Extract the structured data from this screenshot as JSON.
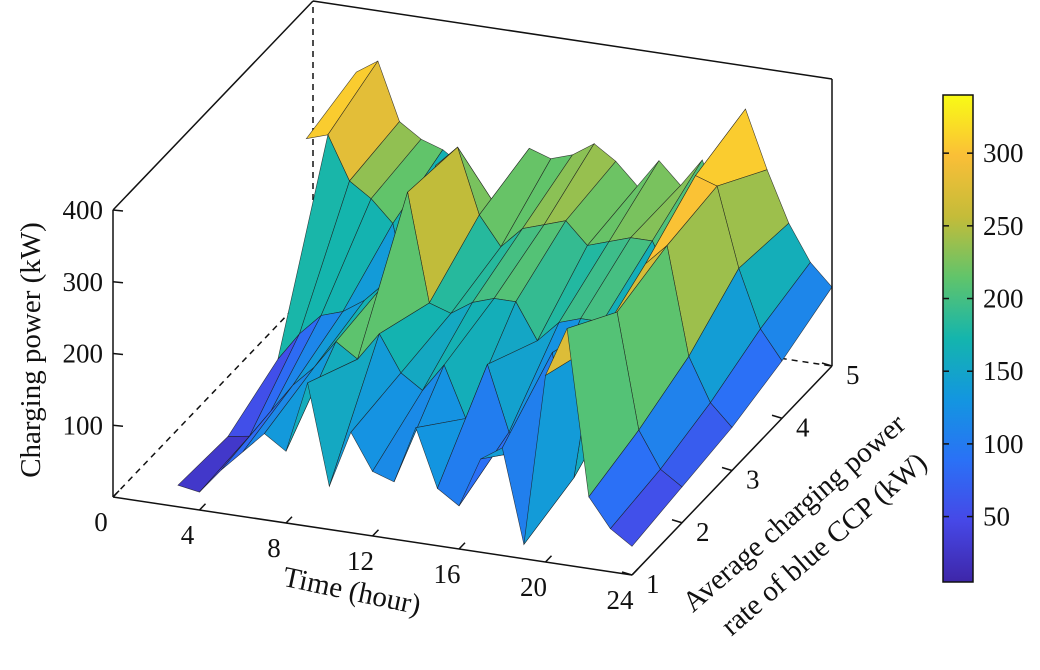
{
  "chart_data": {
    "type": "surface",
    "x": {
      "label": "Time (hour)",
      "range": [
        0,
        24
      ],
      "ticks": [
        0,
        4,
        8,
        12,
        16,
        20,
        24
      ]
    },
    "y": {
      "label_line1": "Average charging power",
      "label_line2": "rate of blue CCP (kW)",
      "range": [
        1,
        5
      ],
      "ticks": [
        1,
        2,
        3,
        4,
        5
      ]
    },
    "z": {
      "label": "Charging power (kW)",
      "range": [
        0,
        400
      ],
      "ticks": [
        100,
        200,
        300,
        400
      ]
    },
    "colorbar": {
      "range": [
        5,
        340
      ],
      "ticks": [
        50,
        100,
        150,
        200,
        250,
        300
      ],
      "colormap": "parula"
    },
    "grid_x": [
      0,
      1,
      2,
      3,
      4,
      5,
      6,
      7,
      8,
      9,
      10,
      11,
      12,
      13,
      14,
      15,
      16,
      17,
      18,
      19,
      20,
      21,
      22,
      23,
      24
    ],
    "grid_y": [
      1,
      2,
      3,
      4,
      5
    ],
    "z_values": [
      [
        null,
        null,
        null,
        30,
        25,
        60,
        90,
        120,
        100,
        200,
        60,
        140,
        90,
        80,
        160,
        80,
        60,
        130,
        150,
        20,
        260,
        330,
        100,
        60,
        40
      ],
      [
        null,
        null,
        null,
        25,
        30,
        70,
        110,
        140,
        180,
        160,
        200,
        150,
        130,
        170,
        100,
        180,
        90,
        70,
        210,
        40,
        230,
        280,
        120,
        70,
        50
      ],
      [
        null,
        null,
        null,
        60,
        100,
        130,
        140,
        160,
        190,
        320,
        170,
        160,
        180,
        190,
        190,
        140,
        170,
        180,
        180,
        90,
        270,
        300,
        150,
        90,
        60
      ],
      [
        null,
        null,
        290,
        300,
        240,
        220,
        190,
        60,
        280,
        310,
        220,
        180,
        210,
        220,
        230,
        200,
        210,
        220,
        220,
        160,
        320,
        310,
        200,
        120,
        80
      ],
      [
        null,
        null,
        310,
        330,
        250,
        230,
        220,
        200,
        100,
        130,
        240,
        230,
        240,
        260,
        240,
        210,
        250,
        220,
        260,
        180,
        340,
        260,
        190,
        140,
        110
      ]
    ]
  }
}
